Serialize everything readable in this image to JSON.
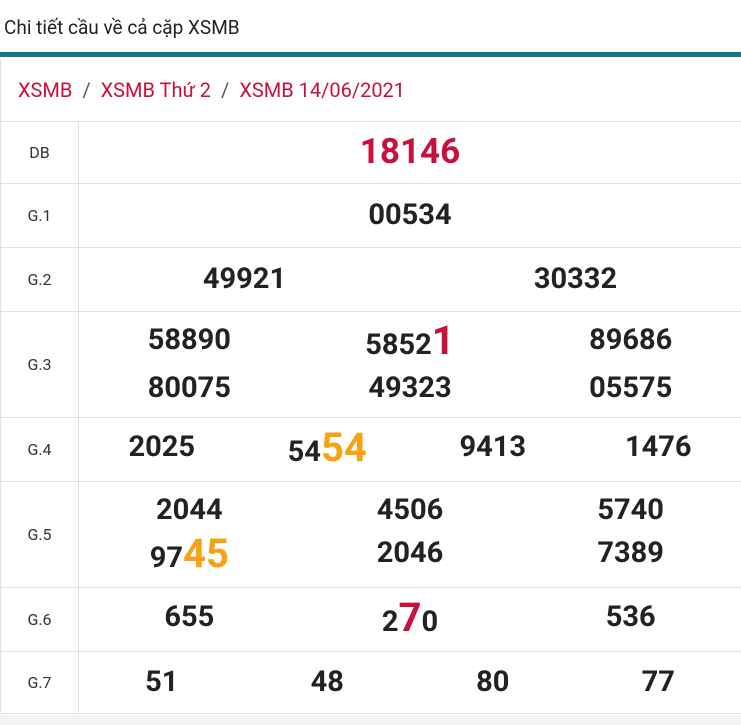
{
  "header": {
    "title": "Chi tiết cầu về cả cặp XSMB"
  },
  "breadcrumb": {
    "separator": "/",
    "items": [
      "XSMB",
      "XSMB Thứ 2",
      "XSMB 14/06/2021"
    ]
  },
  "table": {
    "rows": [
      {
        "label": "DB",
        "numbers": [
          [
            {
              "text": "18146",
              "color": "#c8103c"
            }
          ]
        ]
      },
      {
        "label": "G.1",
        "numbers": [
          [
            {
              "text": "00534"
            }
          ]
        ]
      },
      {
        "label": "G.2",
        "numbers": [
          [
            {
              "text": "49921"
            }
          ],
          [
            {
              "text": "30332"
            }
          ]
        ]
      },
      {
        "label": "G.3",
        "numbers": [
          [
            {
              "text": "58890"
            }
          ],
          [
            {
              "text": "5852"
            },
            {
              "text": "1",
              "color": "#c8103c"
            }
          ],
          [
            {
              "text": "89686"
            }
          ],
          [
            {
              "text": "80075"
            }
          ],
          [
            {
              "text": "49323"
            }
          ],
          [
            {
              "text": "05575"
            }
          ]
        ]
      },
      {
        "label": "G.4",
        "numbers": [
          [
            {
              "text": "2025"
            }
          ],
          [
            {
              "text": "54"
            },
            {
              "text": "54",
              "color": "#f5a314"
            }
          ],
          [
            {
              "text": "9413"
            }
          ],
          [
            {
              "text": "1476"
            }
          ]
        ]
      },
      {
        "label": "G.5",
        "numbers": [
          [
            {
              "text": "2044"
            }
          ],
          [
            {
              "text": "4506"
            }
          ],
          [
            {
              "text": "5740"
            }
          ],
          [
            {
              "text": "97"
            },
            {
              "text": "45",
              "color": "#f5a314"
            }
          ],
          [
            {
              "text": "2046"
            }
          ],
          [
            {
              "text": "7389"
            }
          ]
        ]
      },
      {
        "label": "G.6",
        "numbers": [
          [
            {
              "text": "655"
            }
          ],
          [
            {
              "text": "2"
            },
            {
              "text": "7",
              "color": "#c8103c"
            },
            {
              "text": "0"
            }
          ],
          [
            {
              "text": "536"
            }
          ]
        ]
      },
      {
        "label": "G.7",
        "numbers": [
          [
            {
              "text": "51"
            }
          ],
          [
            {
              "text": "48"
            }
          ],
          [
            {
              "text": "80"
            }
          ],
          [
            {
              "text": "77"
            }
          ]
        ]
      }
    ]
  }
}
